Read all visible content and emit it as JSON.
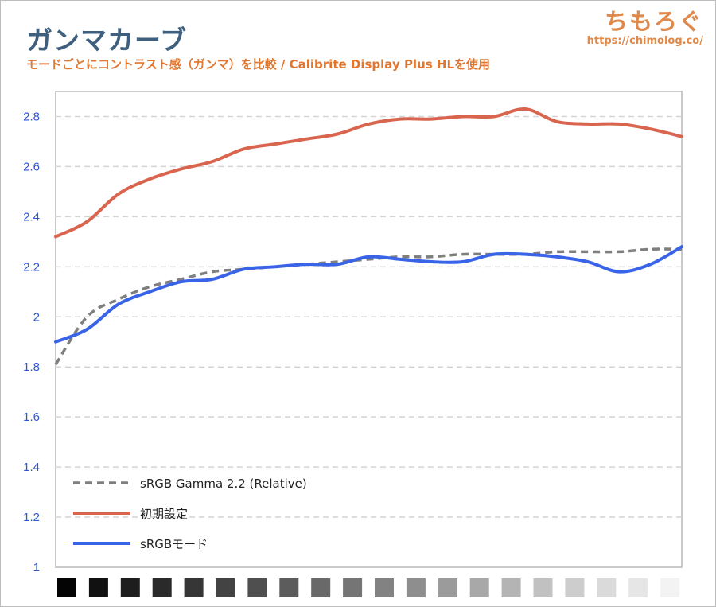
{
  "header": {
    "title": "ガンマカーブ",
    "subtitle": "モードごとにコントラスト感（ガンマ）を比較 / Calibrite Display Plus HLを使用"
  },
  "brand": {
    "name": "ちもろぐ",
    "url": "https://chimolog.co/"
  },
  "colors": {
    "initial": "#d9654f",
    "srgb_mode": "#3a64e8",
    "reference": "#7f7f7f",
    "tick": "#2d57d6"
  },
  "chart_data": {
    "type": "line",
    "x": [
      0,
      5,
      10,
      15,
      20,
      25,
      30,
      35,
      40,
      45,
      50,
      55,
      60,
      65,
      70,
      75,
      80,
      85,
      90,
      95,
      100
    ],
    "ylim": [
      1,
      2.9
    ],
    "yticks": [
      1,
      1.2,
      1.4,
      1.6,
      1.8,
      2,
      2.2,
      2.4,
      2.6,
      2.8
    ],
    "ytick_labels": [
      "1",
      "1.2",
      "1.4",
      "1.6",
      "1.8",
      "2",
      "2.2",
      "2.4",
      "2.6",
      "2.8"
    ],
    "grid": "horizontal-dashed",
    "legend_position": "bottom-left",
    "grayscale_steps": 20,
    "series": [
      {
        "name": "sRGB Gamma 2.2 (Relative)",
        "style": "dashed",
        "color": "#7f7f7f",
        "values": [
          1.81,
          2.0,
          2.07,
          2.12,
          2.15,
          2.18,
          2.19,
          2.2,
          2.21,
          2.22,
          2.23,
          2.24,
          2.24,
          2.25,
          2.25,
          2.25,
          2.26,
          2.26,
          2.26,
          2.27,
          2.27
        ]
      },
      {
        "name": "初期設定",
        "style": "solid",
        "color": "#d9654f",
        "values": [
          2.32,
          2.38,
          2.49,
          2.55,
          2.59,
          2.62,
          2.67,
          2.69,
          2.71,
          2.73,
          2.77,
          2.79,
          2.79,
          2.8,
          2.8,
          2.83,
          2.78,
          2.77,
          2.77,
          2.75,
          2.72
        ]
      },
      {
        "name": "sRGBモード",
        "style": "solid",
        "color": "#3a64e8",
        "values": [
          1.9,
          1.95,
          2.05,
          2.1,
          2.14,
          2.15,
          2.19,
          2.2,
          2.21,
          2.21,
          2.24,
          2.23,
          2.22,
          2.22,
          2.25,
          2.25,
          2.24,
          2.22,
          2.18,
          2.21,
          2.28
        ]
      }
    ]
  }
}
